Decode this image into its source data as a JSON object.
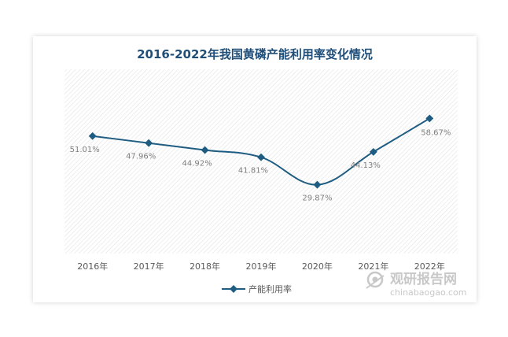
{
  "chart_data": {
    "type": "line",
    "title": "2016-2022年我国黄磷产能利用率变化情况",
    "categories": [
      "2016年",
      "2017年",
      "2018年",
      "2019年",
      "2020年",
      "2021年",
      "2022年"
    ],
    "series": [
      {
        "name": "产能利用率",
        "values": [
          51.01,
          47.96,
          44.92,
          41.81,
          29.87,
          44.13,
          58.67
        ],
        "labels": [
          "51.01%",
          "47.96%",
          "44.92%",
          "41.81%",
          "29.87%",
          "44.13%",
          "58.67%"
        ]
      }
    ],
    "ylim": [
      0,
      80
    ],
    "legend_position": "bottom",
    "grid": false,
    "colors": {
      "line": "#1f5c82",
      "title": "#1f4e79",
      "plot_hatch": "#dcdcdc"
    }
  },
  "watermark": {
    "name": "观研报告网",
    "url": "chinabaogao.com"
  }
}
